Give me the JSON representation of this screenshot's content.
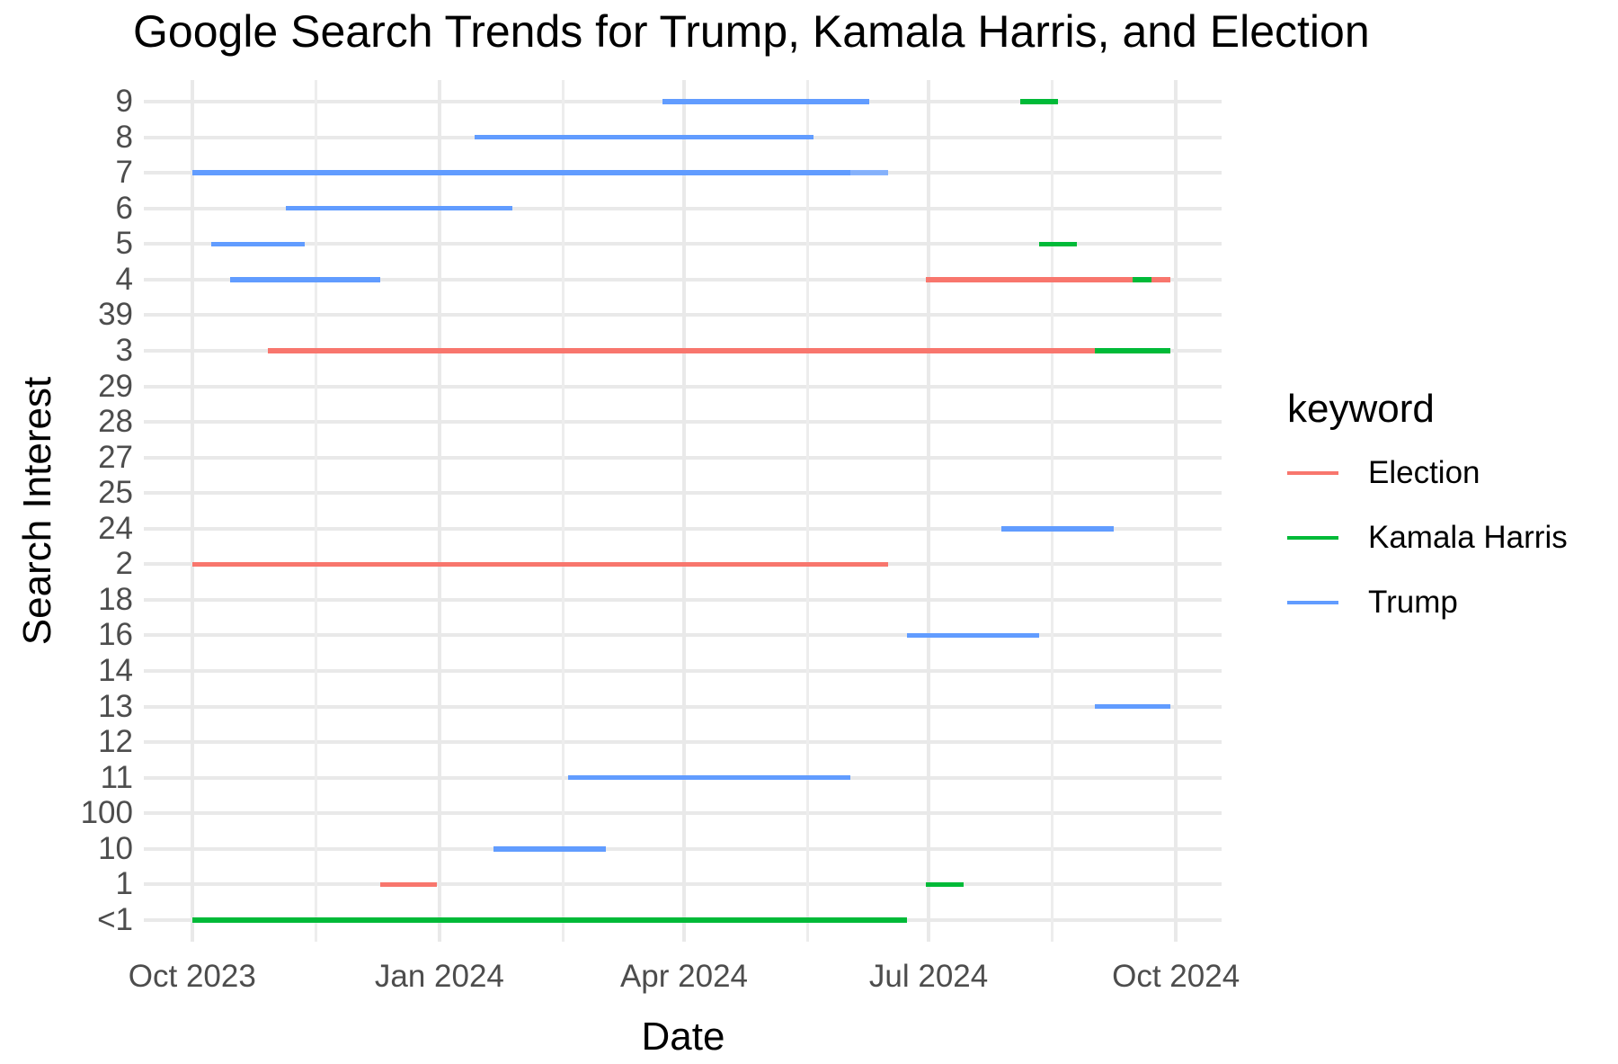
{
  "title": "Google Search Trends for Trump, Kamala Harris, and Election",
  "x_axis": {
    "label": "Date"
  },
  "y_axis": {
    "label": "Search Interest"
  },
  "legend": {
    "title": "keyword",
    "entries": [
      {
        "label": "Election",
        "color": "#F8766D"
      },
      {
        "label": "Kamala Harris",
        "color": "#00BA38"
      },
      {
        "label": "Trump",
        "color": "#619CFF"
      }
    ]
  },
  "chart_data": {
    "type": "segment",
    "title": "Google Search Trends for Trump, Kamala Harris, and Election",
    "xlabel": "Date",
    "ylabel": "Search Interest",
    "grid": true,
    "legend_position": "right",
    "x_domain": [
      "2023-09-13",
      "2024-10-18"
    ],
    "x_ticks": [
      {
        "label": "Oct 2023",
        "date": "2023-10-01"
      },
      {
        "label": "Jan 2024",
        "date": "2024-01-01"
      },
      {
        "label": "Apr 2024",
        "date": "2024-04-01"
      },
      {
        "label": "Jul 2024",
        "date": "2024-07-01"
      },
      {
        "label": "Oct 2024",
        "date": "2024-10-01"
      }
    ],
    "x_minor_gridlines": [
      "2023-11-16",
      "2024-02-16",
      "2024-05-17",
      "2024-08-16"
    ],
    "y_categories_top_to_bottom": [
      "9",
      "8",
      "7",
      "6",
      "5",
      "4",
      "39",
      "3",
      "29",
      "28",
      "27",
      "25",
      "24",
      "2",
      "18",
      "16",
      "14",
      "13",
      "12",
      "11",
      "100",
      "10",
      "1",
      "<1"
    ],
    "series": [
      {
        "name": "Election",
        "color": "#F8766D",
        "segments": [
          {
            "y": "4",
            "start": "2024-06-30",
            "end": "2024-09-29"
          },
          {
            "y": "3",
            "start": "2023-10-29",
            "end": "2024-09-01"
          },
          {
            "y": "2",
            "start": "2023-10-01",
            "end": "2024-06-16"
          },
          {
            "y": "1",
            "start": "2023-12-10",
            "end": "2023-12-31"
          }
        ]
      },
      {
        "name": "Kamala Harris",
        "color": "#00BA38",
        "segments": [
          {
            "y": "9",
            "start": "2024-08-04",
            "end": "2024-08-18"
          },
          {
            "y": "5",
            "start": "2024-08-11",
            "end": "2024-08-25"
          },
          {
            "y": "4",
            "start": "2024-09-15",
            "end": "2024-09-22"
          },
          {
            "y": "3",
            "start": "2024-09-01",
            "end": "2024-09-29"
          },
          {
            "y": "1",
            "start": "2024-06-30",
            "end": "2024-07-14"
          },
          {
            "y": "<1",
            "start": "2023-10-01",
            "end": "2024-06-23"
          }
        ]
      },
      {
        "name": "Trump",
        "color": "#619CFF",
        "segments": [
          {
            "y": "9",
            "start": "2024-03-24",
            "end": "2024-06-09"
          },
          {
            "y": "8",
            "start": "2024-01-14",
            "end": "2024-05-19"
          },
          {
            "y": "7",
            "start": "2023-10-01",
            "end": "2024-06-02"
          },
          {
            "y": "7",
            "start": "2024-06-02",
            "end": "2024-06-16",
            "opacity": 0.75
          },
          {
            "y": "6",
            "start": "2023-11-05",
            "end": "2024-01-28"
          },
          {
            "y": "5",
            "start": "2023-10-08",
            "end": "2023-11-12"
          },
          {
            "y": "4",
            "start": "2023-10-15",
            "end": "2023-12-10"
          },
          {
            "y": "24",
            "start": "2024-07-28",
            "end": "2024-09-08"
          },
          {
            "y": "16",
            "start": "2024-06-23",
            "end": "2024-08-11"
          },
          {
            "y": "13",
            "start": "2024-09-01",
            "end": "2024-09-29"
          },
          {
            "y": "11",
            "start": "2024-02-18",
            "end": "2024-06-02"
          },
          {
            "y": "10",
            "start": "2024-01-21",
            "end": "2024-03-03"
          }
        ]
      }
    ]
  }
}
